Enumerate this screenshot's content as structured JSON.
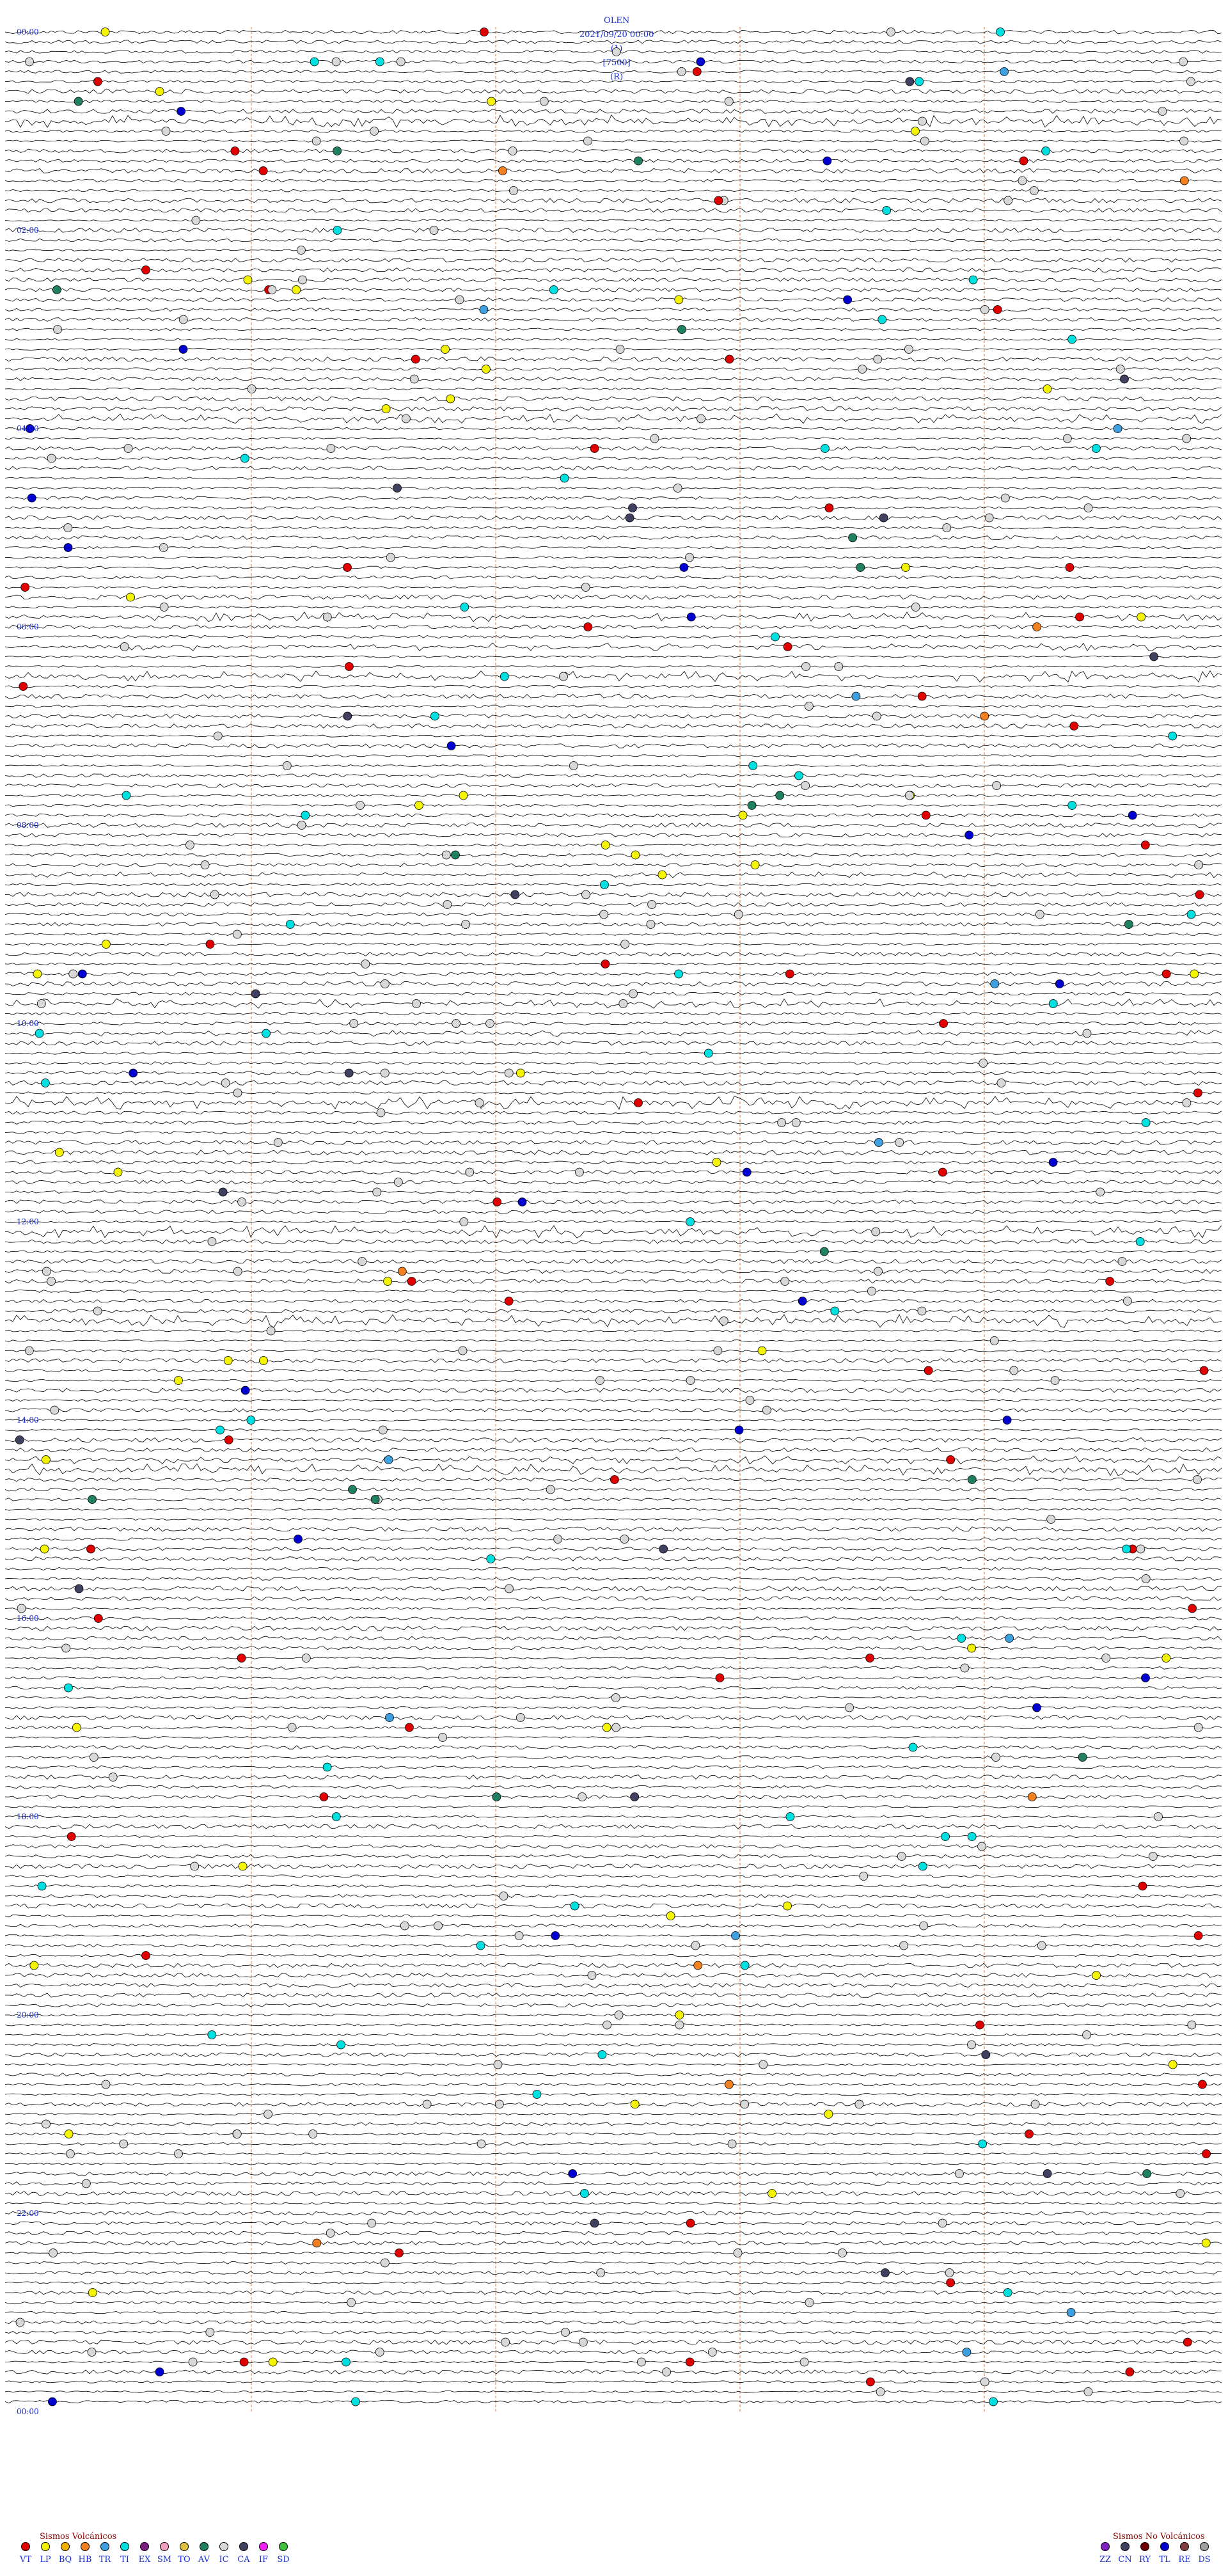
{
  "header": {
    "station": "OLEN",
    "datetime": "2021/09/20 00:00",
    "channel": "(1)",
    "scale": "[7500]",
    "mode": "(R)"
  },
  "time_labels": [
    "00:00",
    "02:00",
    "04:00",
    "06:00",
    "08:00",
    "10:00",
    "12:00",
    "14:00",
    "16:00",
    "18:00",
    "20:00",
    "22:00",
    "00:00"
  ],
  "legend": {
    "volcanic_title": "Sismos Volcánicos",
    "volcanic": [
      {
        "code": "VT",
        "color": "#e00000"
      },
      {
        "code": "LP",
        "color": "#f5f500"
      },
      {
        "code": "BQ",
        "color": "#f0b000"
      },
      {
        "code": "HB",
        "color": "#f08020"
      },
      {
        "code": "TR",
        "color": "#3fa0e0"
      },
      {
        "code": "TI",
        "color": "#00e0e0"
      },
      {
        "code": "EX",
        "color": "#7a2080"
      },
      {
        "code": "SM",
        "color": "#f0a0c0"
      },
      {
        "code": "TO",
        "color": "#e0c040"
      },
      {
        "code": "AV",
        "color": "#208060"
      },
      {
        "code": "IC",
        "color": "#d8d8d8"
      },
      {
        "code": "CA",
        "color": "#404060"
      },
      {
        "code": "IF",
        "color": "#f020f0"
      },
      {
        "code": "SD",
        "color": "#40c040"
      }
    ],
    "nonvolcanic_title": "Sismos No Volcánicos",
    "nonvolcanic": [
      {
        "code": "ZZ",
        "color": "#8020c0"
      },
      {
        "code": "CN",
        "color": "#404060"
      },
      {
        "code": "RY",
        "color": "#700000"
      },
      {
        "code": "TL",
        "color": "#0000d0"
      },
      {
        "code": "RE",
        "color": "#804040"
      },
      {
        "code": "DS",
        "color": "#a0a0a0"
      }
    ]
  },
  "colors": {
    "trace": "#000000",
    "hour_marker": "#1a2fd6",
    "minute_grid": "#e07030",
    "start_box": "#e00000"
  }
}
